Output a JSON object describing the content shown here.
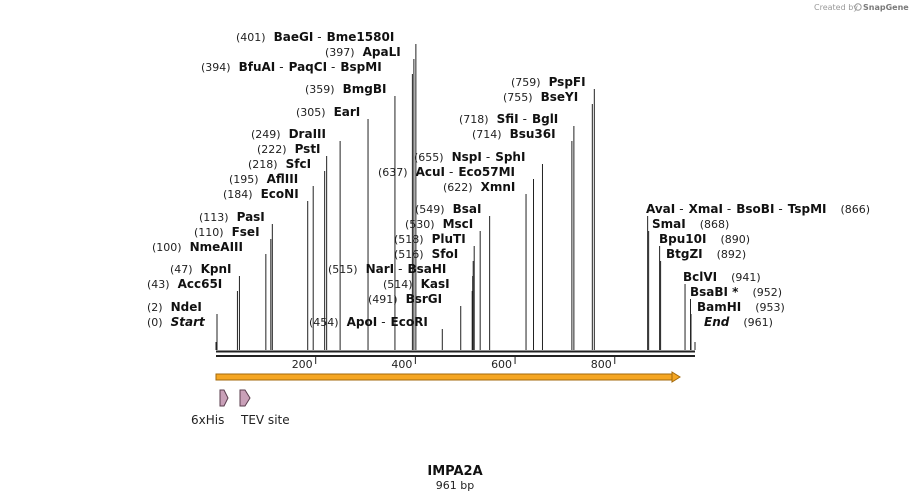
{
  "credit": {
    "text": "Created by",
    "brand": "SnapGene"
  },
  "map": {
    "name": "IMPA2A",
    "length_label": "961 bp",
    "length": 961,
    "ticks": [
      200,
      400,
      600,
      800
    ],
    "colors": {
      "insert": "#f5a623",
      "feature": "#c9a0b8",
      "line": "#222222"
    }
  },
  "features": [
    {
      "name": "6xHis"
    },
    {
      "name": "TEV site"
    }
  ],
  "sites": [
    {
      "pos": 0,
      "pos_label": "(0)",
      "names": [
        "Start"
      ],
      "italic": true
    },
    {
      "pos": 2,
      "pos_label": "(2)",
      "names": [
        "NdeI"
      ]
    },
    {
      "pos": 43,
      "pos_label": "(43)",
      "names": [
        "Acc65I"
      ]
    },
    {
      "pos": 47,
      "pos_label": "(47)",
      "names": [
        "KpnI"
      ]
    },
    {
      "pos": 100,
      "pos_label": "(100)",
      "names": [
        "NmeAIII"
      ]
    },
    {
      "pos": 110,
      "pos_label": "(110)",
      "names": [
        "FseI"
      ]
    },
    {
      "pos": 113,
      "pos_label": "(113)",
      "names": [
        "PasI"
      ]
    },
    {
      "pos": 184,
      "pos_label": "(184)",
      "names": [
        "EcoNI"
      ]
    },
    {
      "pos": 195,
      "pos_label": "(195)",
      "names": [
        "AflIII"
      ]
    },
    {
      "pos": 218,
      "pos_label": "(218)",
      "names": [
        "SfcI"
      ]
    },
    {
      "pos": 222,
      "pos_label": "(222)",
      "names": [
        "PstI"
      ]
    },
    {
      "pos": 249,
      "pos_label": "(249)",
      "names": [
        "DraIII"
      ]
    },
    {
      "pos": 305,
      "pos_label": "(305)",
      "names": [
        "EarI"
      ]
    },
    {
      "pos": 359,
      "pos_label": "(359)",
      "names": [
        "BmgBI"
      ]
    },
    {
      "pos": 394,
      "pos_label": "(394)",
      "names": [
        "BfuAI",
        "PaqCI",
        "BspMI"
      ]
    },
    {
      "pos": 397,
      "pos_label": "(397)",
      "names": [
        "ApaLI"
      ]
    },
    {
      "pos": 401,
      "pos_label": "(401)",
      "names": [
        "BaeGI",
        "Bme1580I"
      ]
    },
    {
      "pos": 454,
      "pos_label": "(454)",
      "names": [
        "ApoI",
        "EcoRI"
      ]
    },
    {
      "pos": 491,
      "pos_label": "(491)",
      "names": [
        "BsrGI"
      ]
    },
    {
      "pos": 514,
      "pos_label": "(514)",
      "names": [
        "KasI"
      ]
    },
    {
      "pos": 515,
      "pos_label": "(515)",
      "names": [
        "NarI",
        "BsaHI"
      ]
    },
    {
      "pos": 516,
      "pos_label": "(516)",
      "names": [
        "SfoI"
      ]
    },
    {
      "pos": 518,
      "pos_label": "(518)",
      "names": [
        "PluTI"
      ]
    },
    {
      "pos": 530,
      "pos_label": "(530)",
      "names": [
        "MscI"
      ]
    },
    {
      "pos": 549,
      "pos_label": "(549)",
      "names": [
        "BsaI"
      ]
    },
    {
      "pos": 622,
      "pos_label": "(622)",
      "names": [
        "XmnI"
      ]
    },
    {
      "pos": 637,
      "pos_label": "(637)",
      "names": [
        "AcuI",
        "Eco57MI"
      ]
    },
    {
      "pos": 655,
      "pos_label": "(655)",
      "names": [
        "NspI",
        "SphI"
      ]
    },
    {
      "pos": 714,
      "pos_label": "(714)",
      "names": [
        "Bsu36I"
      ]
    },
    {
      "pos": 718,
      "pos_label": "(718)",
      "names": [
        "SfiI",
        "BglI"
      ]
    },
    {
      "pos": 755,
      "pos_label": "(755)",
      "names": [
        "BseYI"
      ]
    },
    {
      "pos": 759,
      "pos_label": "(759)",
      "names": [
        "PspFI"
      ]
    },
    {
      "pos": 866,
      "pos_label": "(866)",
      "names": [
        "AvaI",
        "XmaI",
        "BsoBI",
        "TspMI"
      ]
    },
    {
      "pos": 868,
      "pos_label": "(868)",
      "names": [
        "SmaI"
      ]
    },
    {
      "pos": 890,
      "pos_label": "(890)",
      "names": [
        "Bpu10I"
      ]
    },
    {
      "pos": 892,
      "pos_label": "(892)",
      "names": [
        "BtgZI"
      ]
    },
    {
      "pos": 941,
      "pos_label": "(941)",
      "names": [
        "BclVI"
      ]
    },
    {
      "pos": 952,
      "pos_label": "(952)",
      "names": [
        "BsaBI *"
      ]
    },
    {
      "pos": 953,
      "pos_label": "(953)",
      "names": [
        "BamHI"
      ]
    },
    {
      "pos": 961,
      "pos_label": "(961)",
      "names": [
        "End"
      ],
      "italic": true
    }
  ]
}
